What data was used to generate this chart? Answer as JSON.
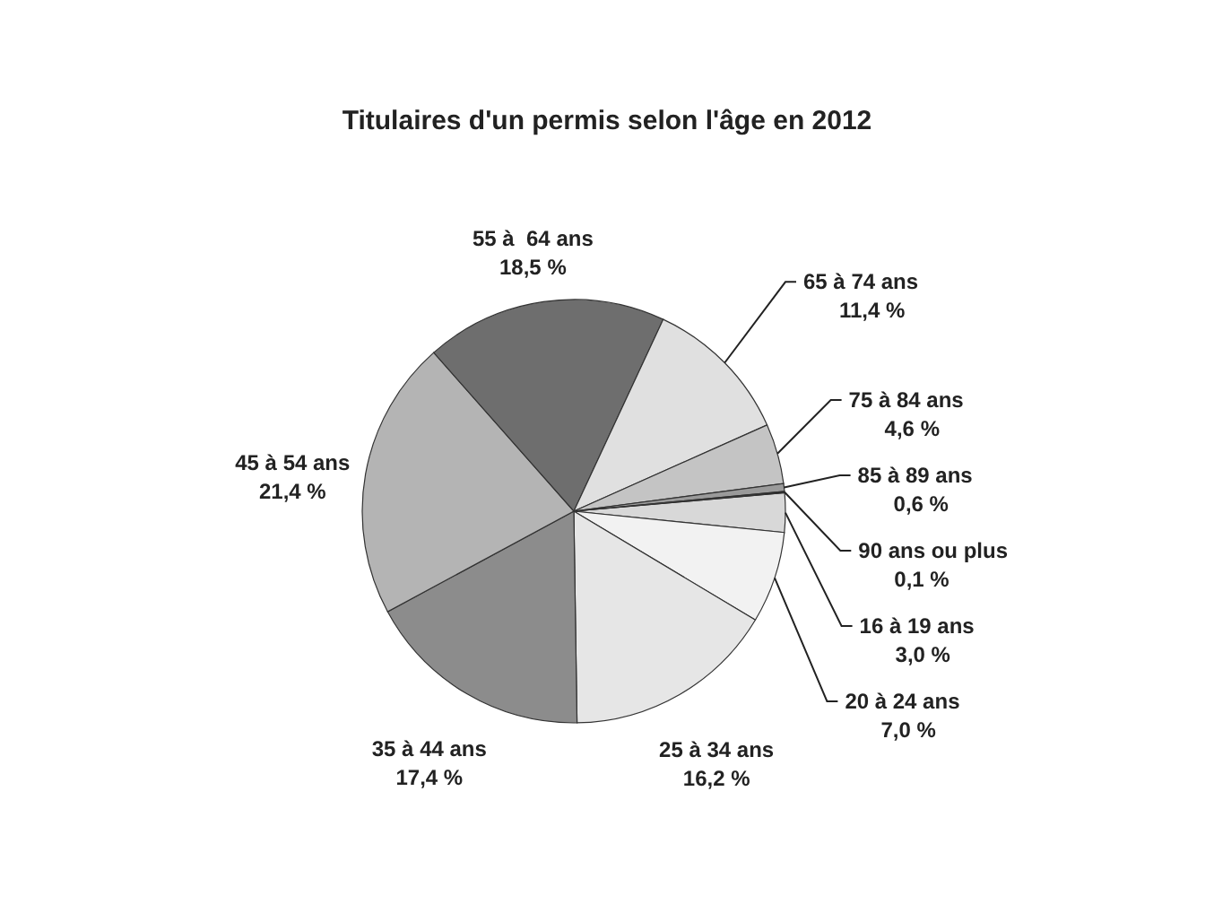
{
  "chart_data": {
    "type": "pie",
    "title": "Titulaires d'un permis selon l'âge en 2012",
    "categories": [
      "16 à 19 ans",
      "20 à 24 ans",
      "25 à 34 ans",
      "35 à 44 ans",
      "45 à 54 ans",
      "55 à  64 ans",
      "65 à 74 ans",
      "75 à 84 ans",
      "85 à 89 ans",
      "90 ans ou plus"
    ],
    "values": [
      3.0,
      7.0,
      16.2,
      17.4,
      21.4,
      18.5,
      11.4,
      4.6,
      0.6,
      0.1
    ],
    "value_labels": [
      "3,0 %",
      "7,0 %",
      "16,2 %",
      "17,4 %",
      "21,4 %",
      "18,5 %",
      "11,4 %",
      "4,6 %",
      "0,6 %",
      "0,1 %"
    ],
    "colors": [
      "#d8d8d8",
      "#f2f2f2",
      "#e6e6e6",
      "#8c8c8c",
      "#b4b4b4",
      "#6e6e6e",
      "#e0e0e0",
      "#c4c4c4",
      "#9a9a9a",
      "#000000"
    ]
  }
}
